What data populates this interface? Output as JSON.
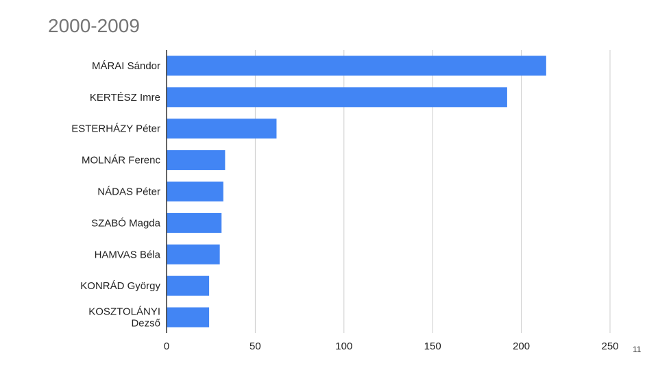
{
  "slide": {
    "title": "2000-2009",
    "page_number": "11"
  },
  "chart_data": {
    "type": "bar",
    "orientation": "horizontal",
    "title": "2000-2009",
    "xlabel": "",
    "ylabel": "",
    "categories": [
      [
        "MÁRAI Sándor"
      ],
      [
        "KERTÉSZ Imre"
      ],
      [
        "ESTERHÁZY Péter"
      ],
      [
        "MOLNÁR Ferenc"
      ],
      [
        "NÁDAS Péter"
      ],
      [
        "SZABÓ Magda"
      ],
      [
        "HAMVAS Béla"
      ],
      [
        "KONRÁD György"
      ],
      [
        "KOSZTOLÁNYI",
        "Dezső"
      ]
    ],
    "values": [
      214,
      192,
      62,
      33,
      32,
      31,
      30,
      24,
      24
    ],
    "xlim": [
      0,
      250
    ],
    "xticks": [
      0,
      50,
      100,
      150,
      200,
      250
    ],
    "grid": true,
    "legend": "none",
    "bar_color": "#4285f4",
    "grid_color": "#cccccc",
    "axis_color": "#333333"
  }
}
